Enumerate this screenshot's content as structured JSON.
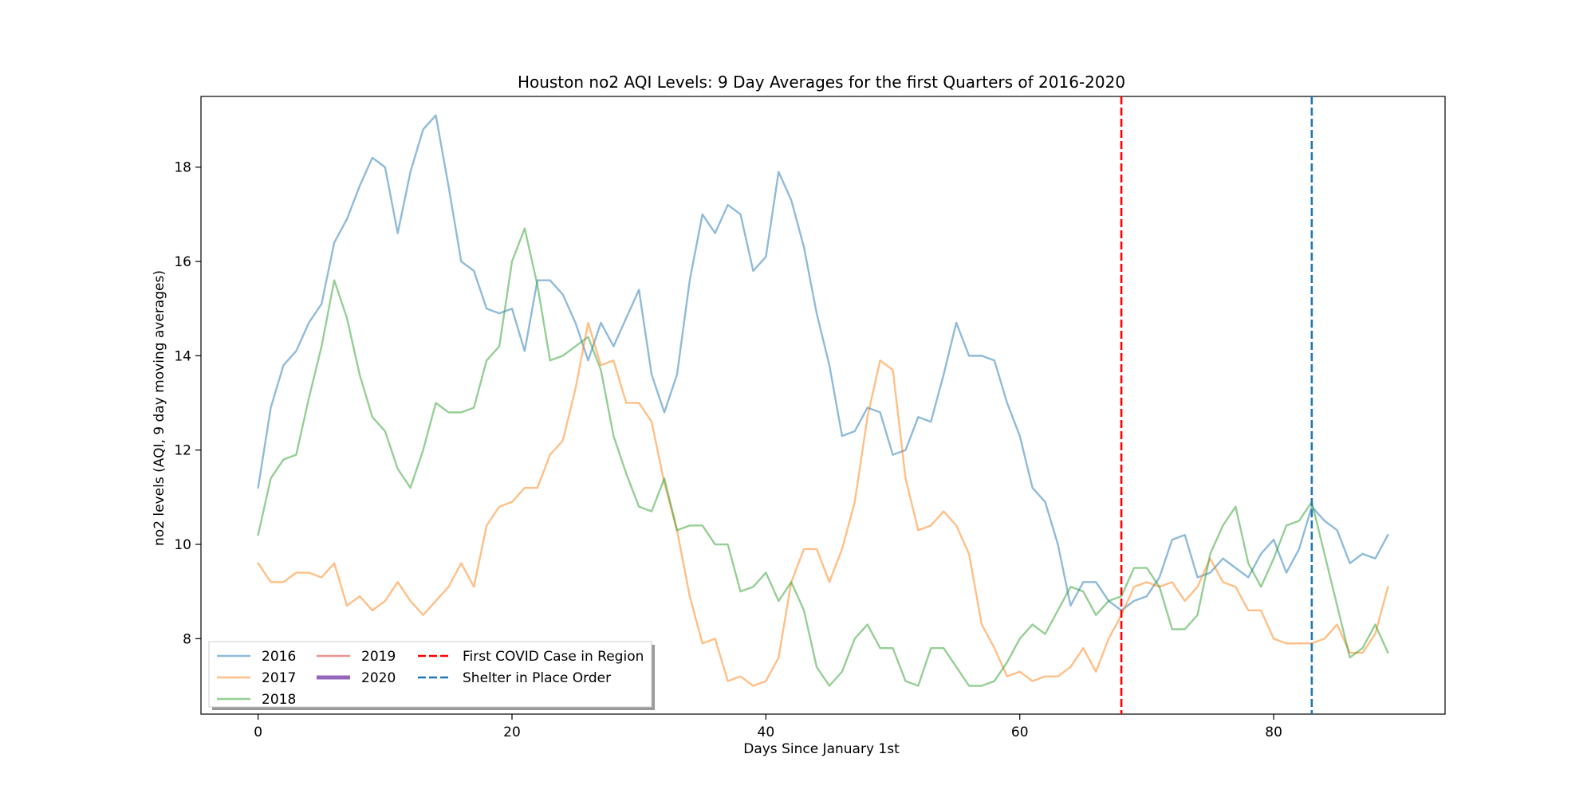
{
  "chart_data": {
    "type": "line",
    "title": "Houston no2 AQI Levels: 9 Day Averages for the first Quarters of 2016-2020",
    "xlabel": "Days Since January 1st",
    "ylabel": "no2 levels (AQI, 9 day moving averages)",
    "xlim": [
      -4.5,
      93.5
    ],
    "ylim": [
      6.4,
      19.5
    ],
    "xticks": [
      0,
      20,
      40,
      60,
      80
    ],
    "yticks": [
      8,
      10,
      12,
      14,
      16,
      18
    ],
    "grid": false,
    "legend_position": "lower-left",
    "series": [
      {
        "name": "2016",
        "color": "#1f77b4",
        "opacity": 0.5,
        "values": [
          11.2,
          12.9,
          13.8,
          14.1,
          14.7,
          15.1,
          16.4,
          16.9,
          17.6,
          18.2,
          18.0,
          16.6,
          17.9,
          18.8,
          19.1,
          17.6,
          16.0,
          15.8,
          15.0,
          14.9,
          15.0,
          14.1,
          15.6,
          15.6,
          15.3,
          14.7,
          13.9,
          14.7,
          14.2,
          14.8,
          15.4,
          13.6,
          12.8,
          13.6,
          15.6,
          17.0,
          16.6,
          17.2,
          17.0,
          15.8,
          16.1,
          17.9,
          17.3,
          16.3,
          14.9,
          13.8,
          12.3,
          12.4,
          12.9,
          12.8,
          11.9,
          12.0,
          12.7,
          12.6,
          13.6,
          14.7,
          14.0,
          14.0,
          13.9,
          13.0,
          12.3,
          11.2,
          10.9,
          10.0,
          8.7,
          9.2,
          9.2,
          8.8,
          8.6,
          8.8,
          8.9,
          9.3,
          10.1,
          10.2,
          9.3,
          9.4,
          9.7,
          9.5,
          9.3,
          9.8,
          10.1,
          9.4,
          9.9,
          10.8,
          10.5,
          10.3,
          9.6,
          9.8,
          9.7,
          10.2
        ]
      },
      {
        "name": "2017",
        "color": "#ff7f0e",
        "opacity": 0.5,
        "values": [
          9.6,
          9.2,
          9.2,
          9.4,
          9.4,
          9.3,
          9.6,
          8.7,
          8.9,
          8.6,
          8.8,
          9.2,
          8.8,
          8.5,
          8.8,
          9.1,
          9.6,
          9.1,
          10.4,
          10.8,
          10.9,
          11.2,
          11.2,
          11.9,
          12.2,
          13.3,
          14.7,
          13.8,
          13.9,
          13.0,
          13.0,
          12.6,
          11.3,
          10.3,
          8.9,
          7.9,
          8.0,
          7.1,
          7.2,
          7.0,
          7.1,
          7.6,
          9.2,
          9.9,
          9.9,
          9.2,
          9.9,
          10.9,
          12.7,
          13.9,
          13.7,
          11.4,
          10.3,
          10.4,
          10.7,
          10.4,
          9.8,
          8.3,
          7.8,
          7.2,
          7.3,
          7.1,
          7.2,
          7.2,
          7.4,
          7.8,
          7.3,
          8.0,
          8.5,
          9.1,
          9.2,
          9.1,
          9.2,
          8.8,
          9.1,
          9.7,
          9.2,
          9.1,
          8.6,
          8.6,
          8.0,
          7.9,
          7.9,
          7.9,
          8.0,
          8.3,
          7.7,
          7.7,
          8.1,
          9.1
        ]
      },
      {
        "name": "2018",
        "color": "#2ca02c",
        "opacity": 0.5,
        "values": [
          10.2,
          11.4,
          11.8,
          11.9,
          13.1,
          14.2,
          15.6,
          14.8,
          13.6,
          12.7,
          12.4,
          11.6,
          11.2,
          12.0,
          13.0,
          12.8,
          12.8,
          12.9,
          13.9,
          14.2,
          16.0,
          16.7,
          15.5,
          13.9,
          14.0,
          14.2,
          14.4,
          13.7,
          12.3,
          11.5,
          10.8,
          10.7,
          11.4,
          10.3,
          10.4,
          10.4,
          10.0,
          10.0,
          9.0,
          9.1,
          9.4,
          8.8,
          9.2,
          8.6,
          7.4,
          7.0,
          7.3,
          8.0,
          8.3,
          7.8,
          7.8,
          7.1,
          7.0,
          7.8,
          7.8,
          7.4,
          7.0,
          7.0,
          7.1,
          7.5,
          8.0,
          8.3,
          8.1,
          8.6,
          9.1,
          9.0,
          8.5,
          8.8,
          8.9,
          9.5,
          9.5,
          9.1,
          8.2,
          8.2,
          8.5,
          9.8,
          10.4,
          10.8,
          9.6,
          9.1,
          9.7,
          10.4,
          10.5,
          10.9,
          9.8,
          8.7,
          7.6,
          7.8,
          8.3,
          7.7
        ]
      },
      {
        "name": "2019",
        "color": "#d62728",
        "opacity": 0.5,
        "values": []
      },
      {
        "name": "2020",
        "color": "#9467bd",
        "opacity": 1.0,
        "values": []
      }
    ],
    "vlines": [
      {
        "x": 68,
        "label": "First COVID Case in Region",
        "color": "#ff0000",
        "dash": true
      },
      {
        "x": 83,
        "label": "Shelter in Place Order",
        "color": "#1f77b4",
        "dash": true
      }
    ]
  }
}
